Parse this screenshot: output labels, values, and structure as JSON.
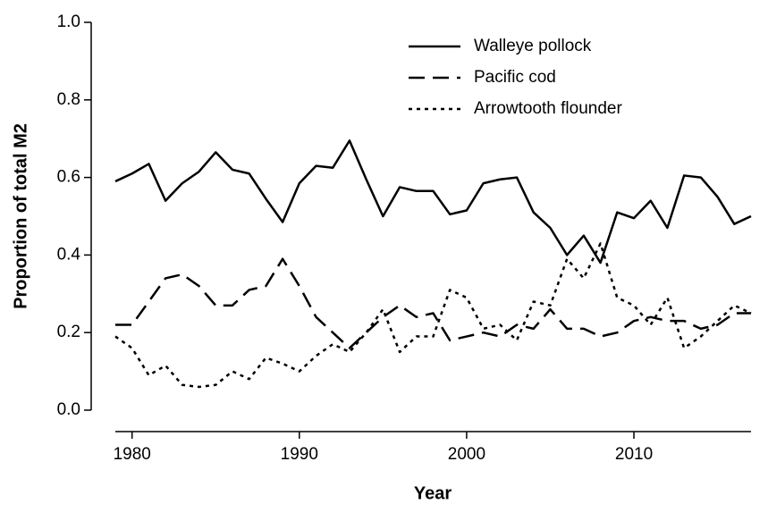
{
  "chart_data": {
    "type": "line",
    "x_label": "Year",
    "y_label": "Proportion of total M2",
    "x": [
      1979,
      1980,
      1981,
      1982,
      1983,
      1984,
      1985,
      1986,
      1987,
      1988,
      1989,
      1990,
      1991,
      1992,
      1993,
      1994,
      1995,
      1996,
      1997,
      1998,
      1999,
      2000,
      2001,
      2002,
      2003,
      2004,
      2005,
      2006,
      2007,
      2008,
      2009,
      2010,
      2011,
      2012,
      2013,
      2014,
      2015,
      2016,
      2017
    ],
    "series": [
      {
        "name": "Walleye pollock",
        "color": "#000000",
        "style": "solid",
        "values": [
          0.59,
          0.61,
          0.635,
          0.54,
          0.585,
          0.615,
          0.665,
          0.62,
          0.61,
          0.545,
          0.485,
          0.585,
          0.63,
          0.625,
          0.695,
          0.595,
          0.5,
          0.575,
          0.565,
          0.565,
          0.505,
          0.515,
          0.585,
          0.595,
          0.6,
          0.51,
          0.47,
          0.4,
          0.45,
          0.38,
          0.51,
          0.495,
          0.54,
          0.47,
          0.605,
          0.6,
          0.55,
          0.48,
          0.5
        ]
      },
      {
        "name": "Pacific cod",
        "color": "#000000",
        "style": "dashed",
        "values": [
          0.22,
          0.22,
          0.28,
          0.34,
          0.35,
          0.32,
          0.27,
          0.27,
          0.31,
          0.32,
          0.39,
          0.32,
          0.24,
          0.2,
          0.16,
          0.2,
          0.24,
          0.27,
          0.24,
          0.25,
          0.18,
          0.19,
          0.2,
          0.19,
          0.22,
          0.21,
          0.26,
          0.21,
          0.21,
          0.19,
          0.2,
          0.23,
          0.24,
          0.23,
          0.23,
          0.21,
          0.22,
          0.25,
          0.25
        ]
      },
      {
        "name": "Arrowtooth flounder",
        "color": "#000000",
        "style": "dotted",
        "values": [
          0.19,
          0.16,
          0.09,
          0.115,
          0.065,
          0.06,
          0.065,
          0.1,
          0.08,
          0.135,
          0.12,
          0.1,
          0.14,
          0.17,
          0.15,
          0.2,
          0.26,
          0.15,
          0.19,
          0.19,
          0.31,
          0.29,
          0.21,
          0.22,
          0.18,
          0.28,
          0.27,
          0.39,
          0.34,
          0.43,
          0.29,
          0.27,
          0.22,
          0.29,
          0.16,
          0.19,
          0.23,
          0.27,
          0.25
        ]
      }
    ],
    "xlim": [
      1979,
      2017
    ],
    "xticks": [
      1980,
      1990,
      2000,
      2010
    ],
    "ylim": [
      0,
      1
    ],
    "yticks": [
      {
        "value": 0,
        "label": "0.0"
      },
      {
        "value": 0.2,
        "label": "0.2"
      },
      {
        "value": 0.4,
        "label": "0.4"
      },
      {
        "value": 0.6,
        "label": "0.6"
      },
      {
        "value": 0.8,
        "label": "0.8"
      },
      {
        "value": 1,
        "label": "1.0"
      }
    ],
    "grid": false,
    "legend": "top-right"
  }
}
